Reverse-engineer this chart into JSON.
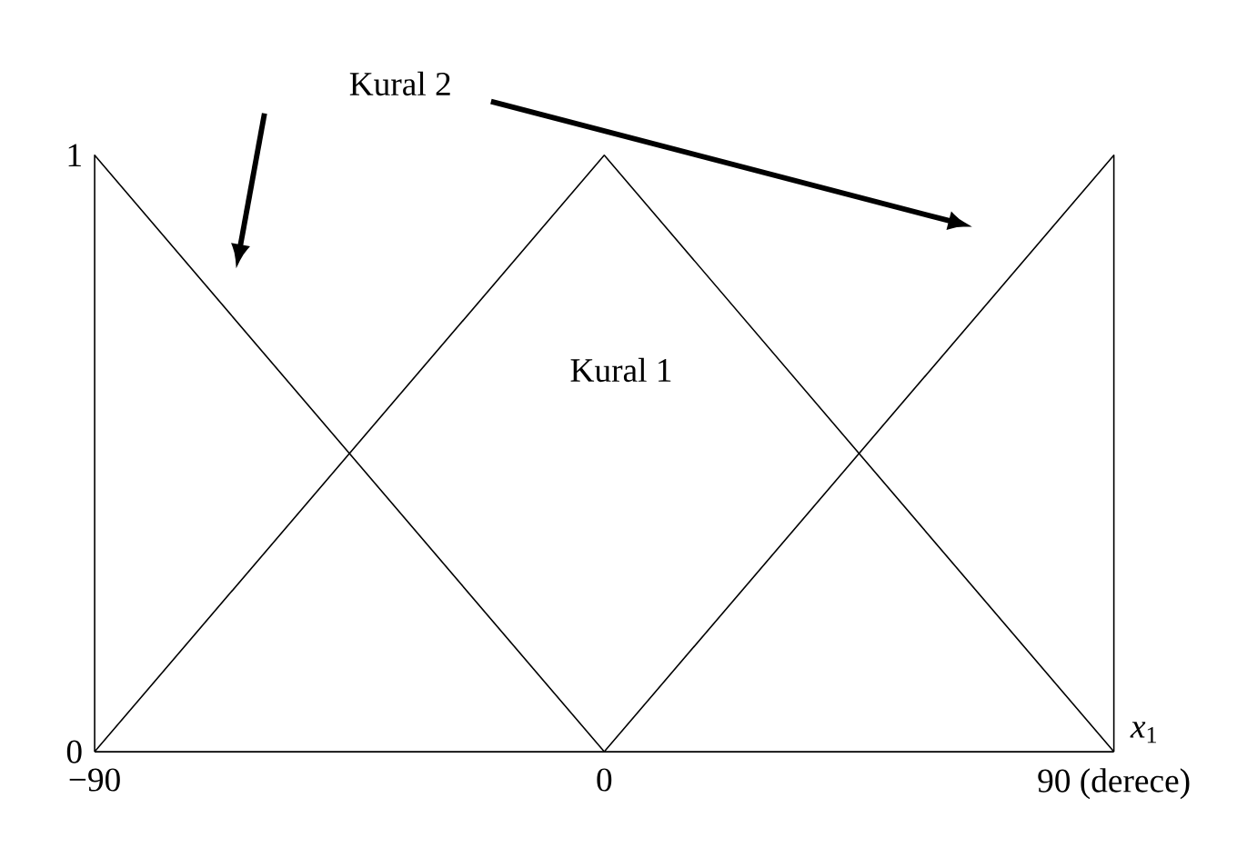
{
  "chart_data": {
    "type": "line",
    "xlabel": "*x*$_{1}$",
    "xlim": [
      -90,
      90
    ],
    "ylim": [
      0,
      1
    ],
    "xticks": [
      {
        "value": -90,
        "label": "−90"
      },
      0,
      {
        "value": 90,
        "label": "90 (derece)"
      }
    ],
    "yticks": [
      0,
      1
    ],
    "series": [
      {
        "color": "#000000",
        "x": [
          -90,
          -90,
          0
        ],
        "values": [
          0,
          1,
          0
        ]
      },
      {
        "color": "#000000",
        "x": [
          -90,
          0,
          90
        ],
        "values": [
          0,
          1,
          0
        ]
      },
      {
        "color": "#000000",
        "x": [
          0,
          90,
          90
        ],
        "values": [
          0,
          1,
          0
        ]
      }
    ],
    "annotations": [
      "Kural 1",
      "Kural 2"
    ]
  }
}
